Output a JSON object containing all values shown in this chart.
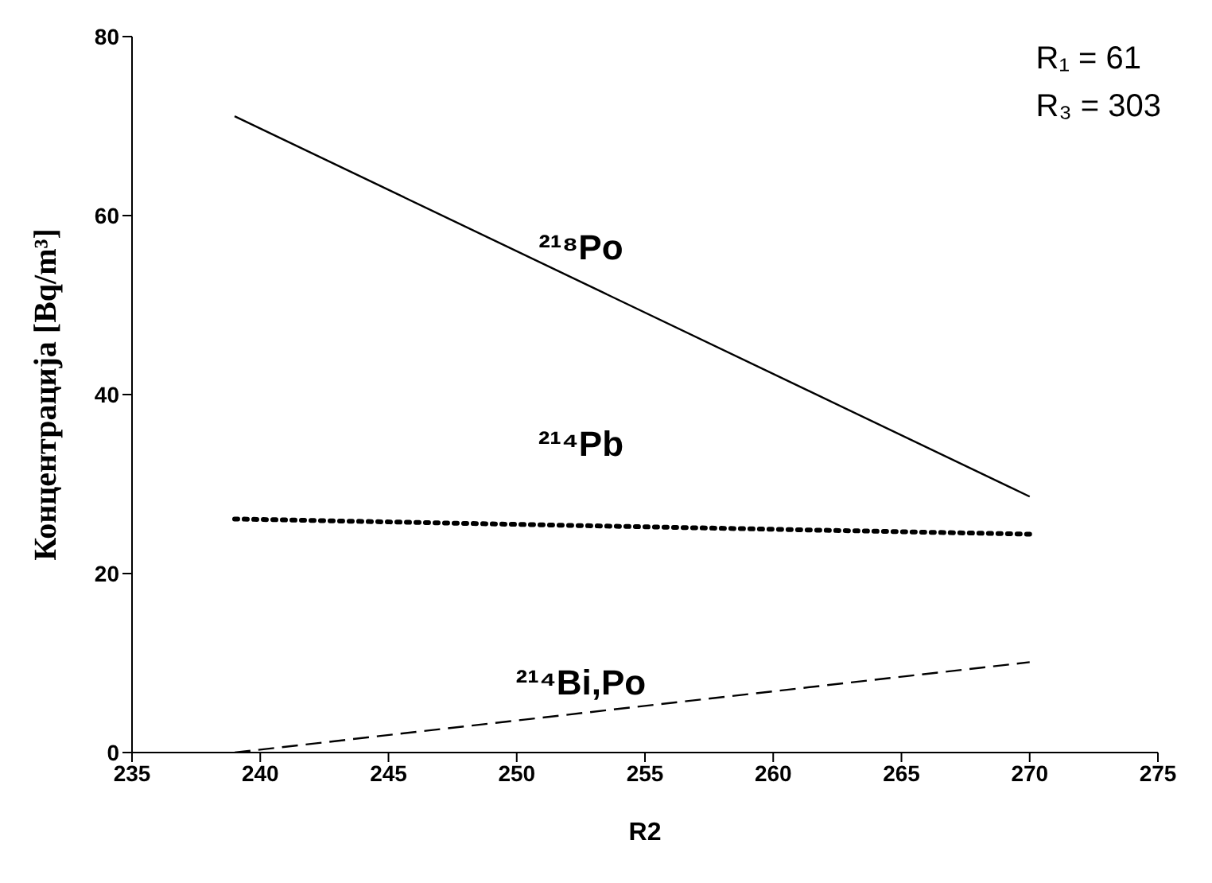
{
  "chart_data": {
    "type": "line",
    "xlabel": "R2",
    "ylabel": "Концентрација [Bq/m³]",
    "x": [
      239,
      270
    ],
    "series": [
      {
        "name": "²¹⁸Po",
        "color": "#000000",
        "values": [
          71.1,
          28.6
        ],
        "line_style": "solid"
      },
      {
        "name": "²¹⁴Pb",
        "color": "#000000",
        "values": [
          26.1,
          24.4
        ],
        "line_style": "dotted"
      },
      {
        "name": "²¹⁴Bi,Po",
        "color": "#000000",
        "values": [
          0,
          10.1
        ],
        "line_style": "dashed"
      }
    ],
    "xlim": [
      235,
      275
    ],
    "xticks": [
      235,
      240,
      245,
      250,
      255,
      260,
      265,
      270,
      275
    ],
    "ylim": [
      0,
      80
    ],
    "yticks": [
      0,
      20,
      40,
      60,
      80
    ],
    "marker": "none",
    "annotations": [
      "R₁ = 61",
      "R₃ = 303"
    ]
  }
}
